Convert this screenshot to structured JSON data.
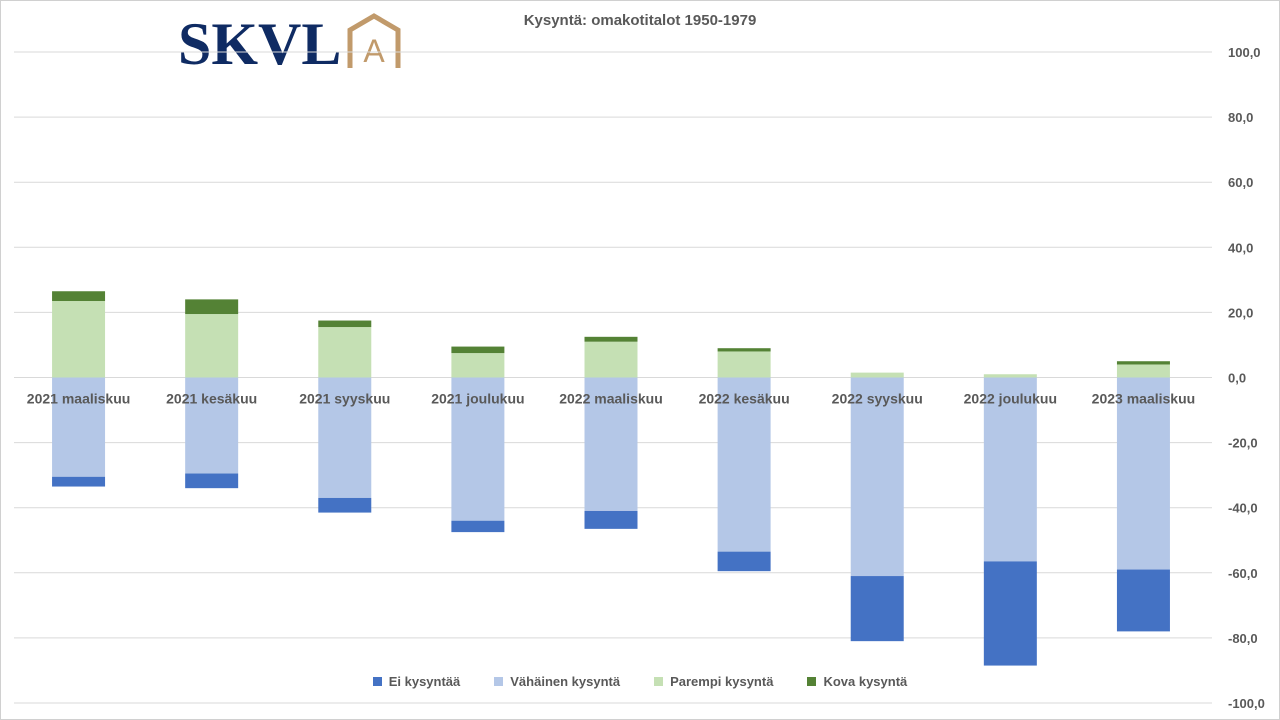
{
  "logo": {
    "text": "SKVL",
    "mark_letter": "A",
    "text_color": "#0f2b63",
    "mark_color": "#c19a6b"
  },
  "chart_data": {
    "type": "bar",
    "stacked": true,
    "title": "Kysyntä: omakotitalot 1950-1979",
    "xlabel": "",
    "ylabel": "",
    "categories": [
      "2021 maaliskuu",
      "2021 kesäkuu",
      "2021 syyskuu",
      "2021 joulukuu",
      "2022 maaliskuu",
      "2022 kesäkuu",
      "2022 syyskuu",
      "2022 joulukuu",
      "2023 maaliskuu"
    ],
    "series": [
      {
        "name": "Ei kysyntää",
        "color": "#4472c4",
        "values": [
          -3.0,
          -4.5,
          -4.5,
          -3.5,
          -5.5,
          -6.0,
          -20.0,
          -32.0,
          -19.0
        ]
      },
      {
        "name": "Vähäinen kysyntä",
        "color": "#b4c7e7",
        "values": [
          -30.5,
          -29.5,
          -37.0,
          -44.0,
          -41.0,
          -53.5,
          -61.0,
          -56.5,
          -59.0
        ]
      },
      {
        "name": "Parempi kysyntä",
        "color": "#c5e0b4",
        "values": [
          23.5,
          19.5,
          15.5,
          7.5,
          11.0,
          8.0,
          1.5,
          1.0,
          4.0
        ]
      },
      {
        "name": "Kova kysyntä",
        "color": "#548235",
        "values": [
          3.0,
          4.5,
          2.0,
          2.0,
          1.5,
          1.0,
          0.0,
          0.0,
          1.0
        ]
      }
    ],
    "ylim": [
      -100,
      100
    ],
    "yticks": [
      "100,0",
      "80,0",
      "60,0",
      "40,0",
      "20,0",
      "0,0",
      "-20,0",
      "-40,0",
      "-60,0",
      "-80,0",
      "-100,0"
    ],
    "ytick_values": [
      100,
      80,
      60,
      40,
      20,
      0,
      -20,
      -40,
      -60,
      -80,
      -100
    ],
    "grid": true,
    "legend_position": "bottom",
    "y_axis_side": "right"
  }
}
